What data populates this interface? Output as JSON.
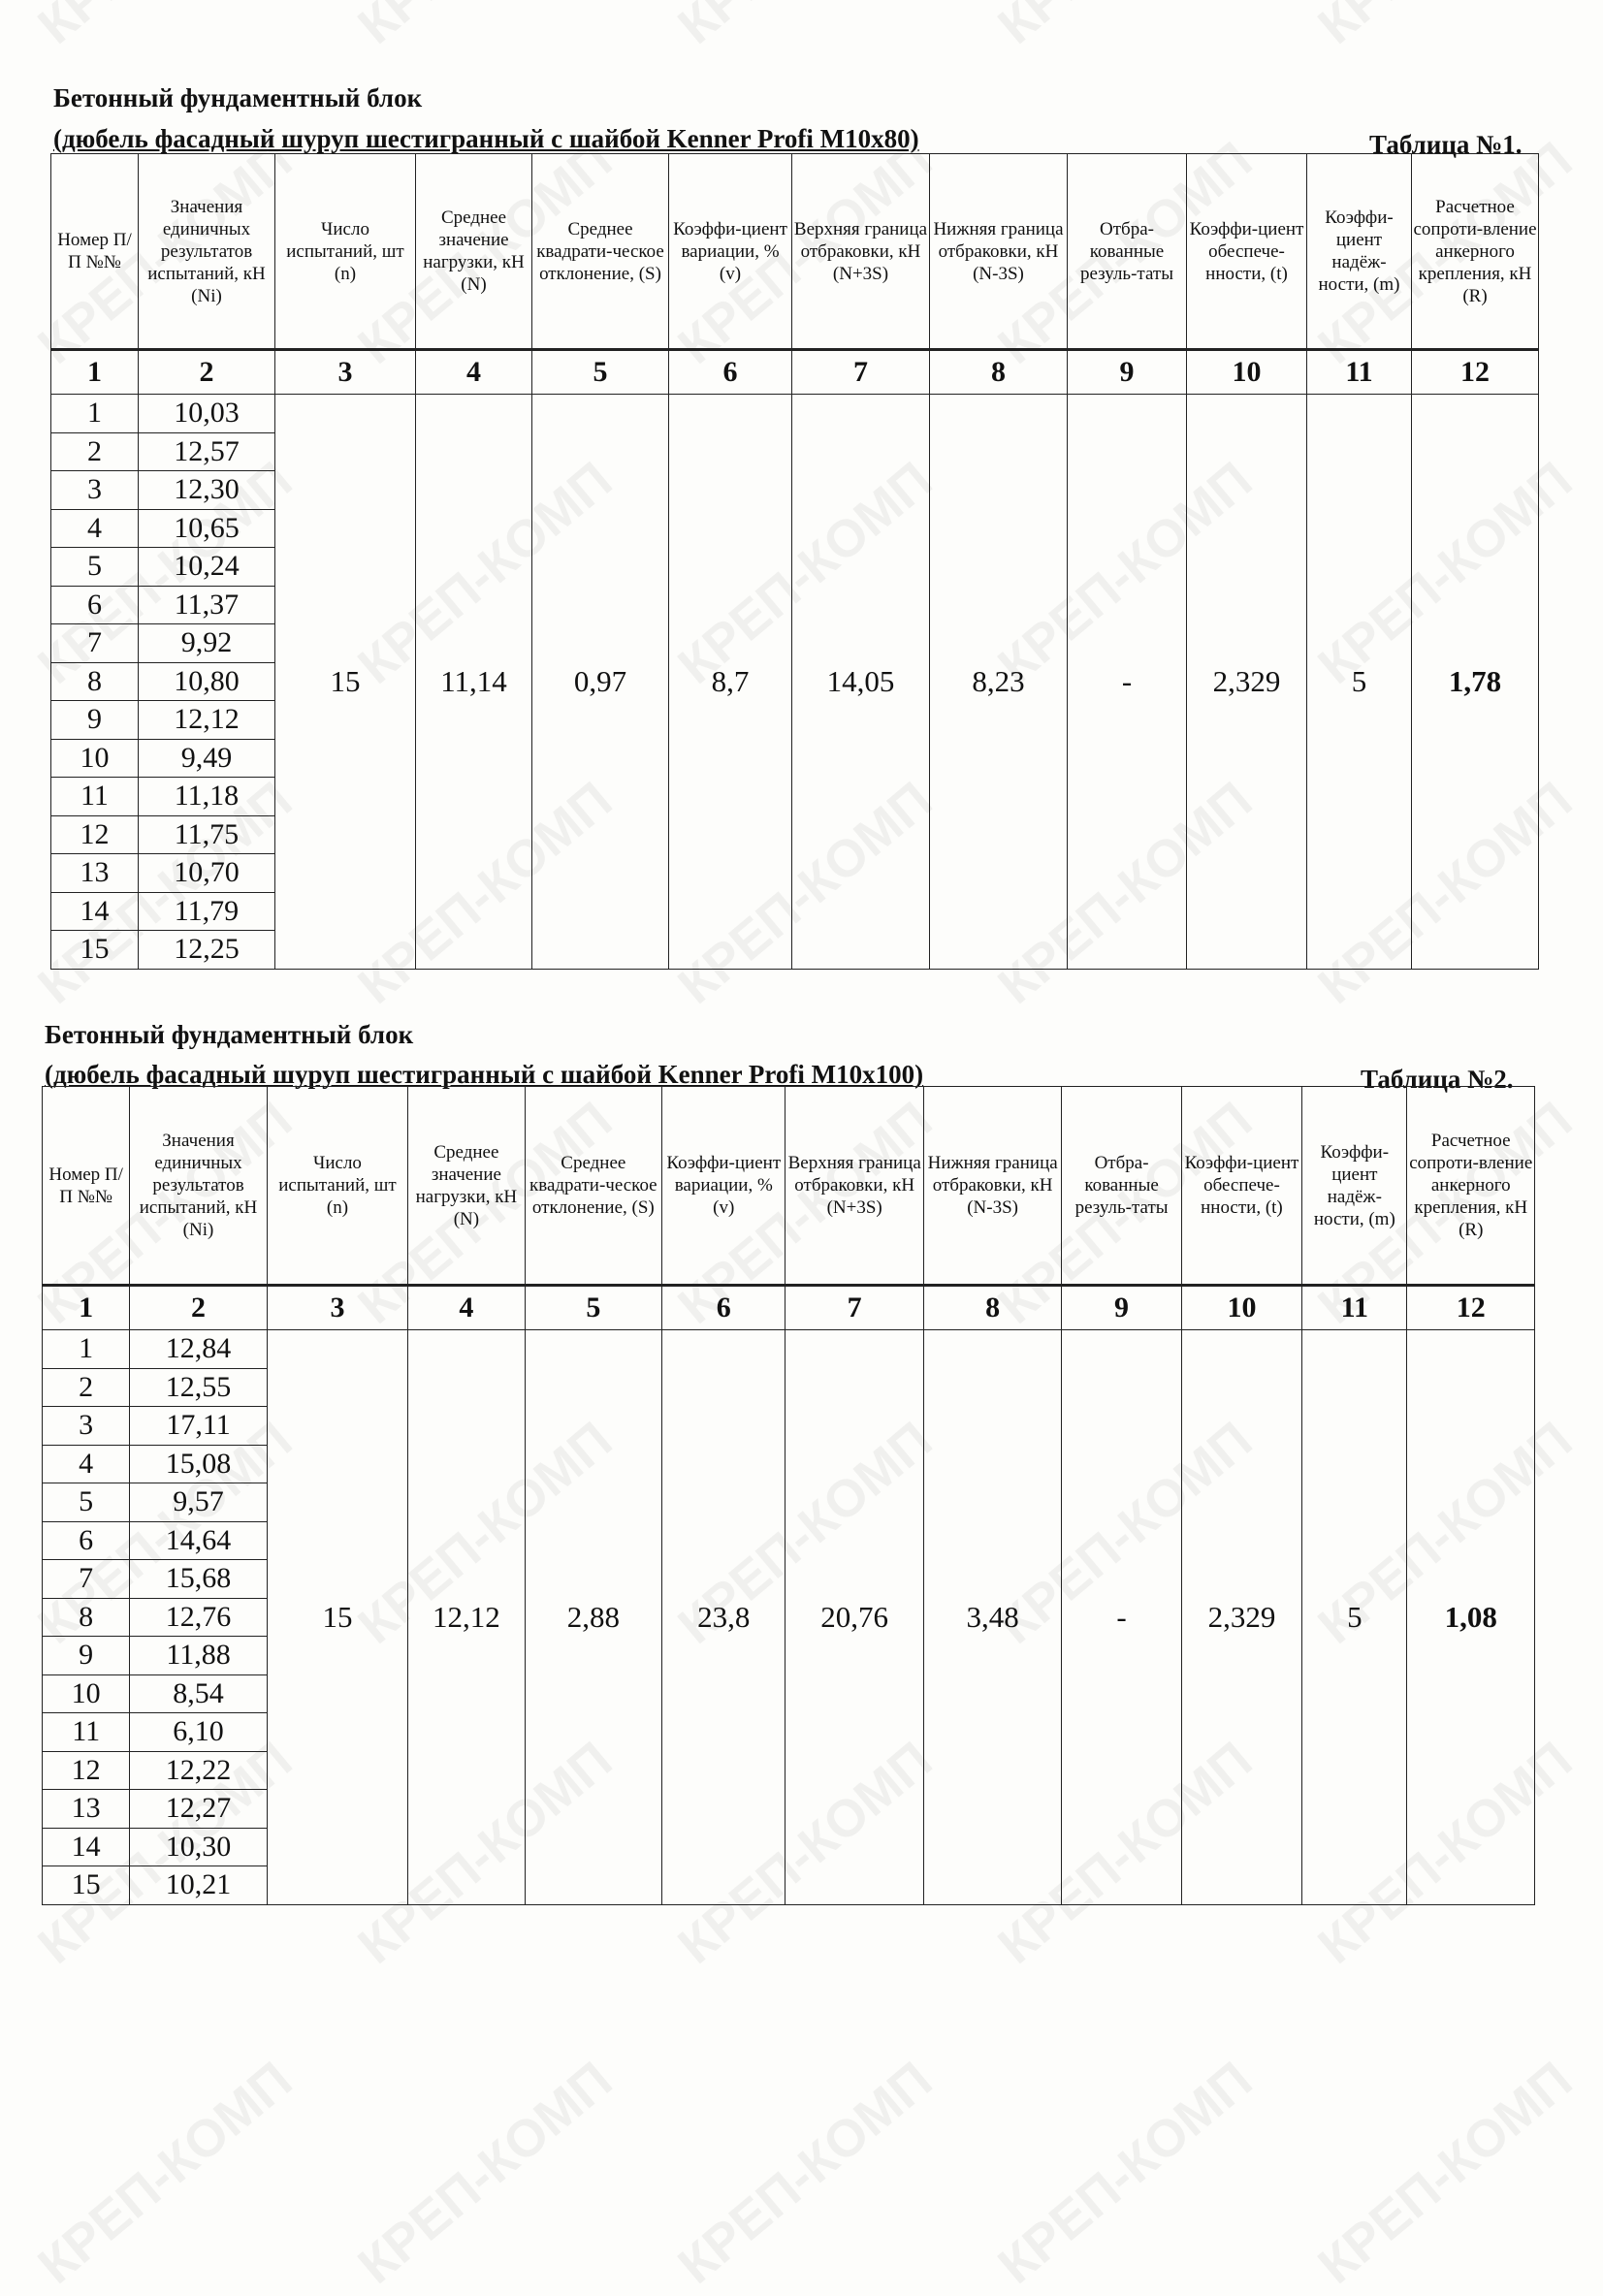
{
  "watermark": "КРЕП-КОМП",
  "headers": [
    "Номер П/П №№",
    "Значения единичных результатов испытаний, кН (Ni)",
    "Число испытаний, шт (n)",
    "Среднее значение нагрузки, кН (N)",
    "Среднее квадрати-ческое отклонение, (S)",
    "Коэффи-циент вариации, % (v)",
    "Верхняя граница отбраковки, кН (N+3S)",
    "Нижняя граница отбраковки, кН (N-3S)",
    "Отбра-кованные резуль-таты",
    "Коэффи-циент обеспече-нности, (t)",
    "Коэффи-циент надёж-ности, (m)",
    "Расчетное сопроти-вление анкерного крепления, кН (R)"
  ],
  "column_numbers": [
    "1",
    "2",
    "3",
    "4",
    "5",
    "6",
    "7",
    "8",
    "9",
    "10",
    "11",
    "12"
  ],
  "tables": [
    {
      "title_line1": "Бетонный фундаментный блок",
      "title_line2": "(дюбель фасадный шуруп шестигранный с шайбой Kenner Profi M10x80)",
      "table_label": "Таблица №1.",
      "rows": [
        [
          "1",
          "10,03"
        ],
        [
          "2",
          "12,57"
        ],
        [
          "3",
          "12,30"
        ],
        [
          "4",
          "10,65"
        ],
        [
          "5",
          "10,24"
        ],
        [
          "6",
          "11,37"
        ],
        [
          "7",
          "9,92"
        ],
        [
          "8",
          "10,80"
        ],
        [
          "9",
          "12,12"
        ],
        [
          "10",
          "9,49"
        ],
        [
          "11",
          "11,18"
        ],
        [
          "12",
          "11,75"
        ],
        [
          "13",
          "10,70"
        ],
        [
          "14",
          "11,79"
        ],
        [
          "15",
          "12,25"
        ]
      ],
      "summary": [
        "15",
        "11,14",
        "0,97",
        "8,7",
        "14,05",
        "8,23",
        "-",
        "2,329",
        "5",
        "1,78"
      ]
    },
    {
      "title_line1": "Бетонный фундаментный блок",
      "title_line2": "(дюбель фасадный шуруп шестигранный с шайбой Kenner Profi M10x100)",
      "table_label": "Таблица №2.",
      "rows": [
        [
          "1",
          "12,84"
        ],
        [
          "2",
          "12,55"
        ],
        [
          "3",
          "17,11"
        ],
        [
          "4",
          "15,08"
        ],
        [
          "5",
          "9,57"
        ],
        [
          "6",
          "14,64"
        ],
        [
          "7",
          "15,68"
        ],
        [
          "8",
          "12,76"
        ],
        [
          "9",
          "11,88"
        ],
        [
          "10",
          "8,54"
        ],
        [
          "11",
          "6,10"
        ],
        [
          "12",
          "12,22"
        ],
        [
          "13",
          "12,27"
        ],
        [
          "14",
          "10,30"
        ],
        [
          "15",
          "10,21"
        ]
      ],
      "summary": [
        "15",
        "12,12",
        "2,88",
        "23,8",
        "20,76",
        "3,48",
        "-",
        "2,329",
        "5",
        "1,08"
      ]
    }
  ]
}
